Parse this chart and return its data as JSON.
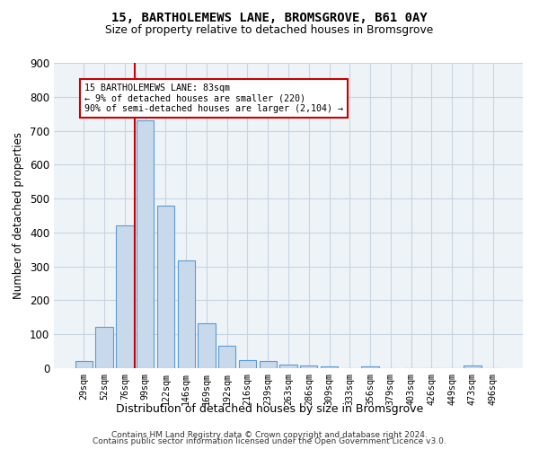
{
  "title": "15, BARTHOLEMEWS LANE, BROMSGROVE, B61 0AY",
  "subtitle": "Size of property relative to detached houses in Bromsgrove",
  "xlabel": "Distribution of detached houses by size in Bromsgrove",
  "ylabel": "Number of detached properties",
  "categories": [
    "29sqm",
    "52sqm",
    "76sqm",
    "99sqm",
    "122sqm",
    "146sqm",
    "169sqm",
    "192sqm",
    "216sqm",
    "239sqm",
    "263sqm",
    "286sqm",
    "309sqm",
    "333sqm",
    "356sqm",
    "379sqm",
    "403sqm",
    "426sqm",
    "449sqm",
    "473sqm",
    "496sqm"
  ],
  "values": [
    20,
    122,
    420,
    730,
    480,
    318,
    133,
    67,
    25,
    20,
    10,
    9,
    5,
    0,
    5,
    0,
    0,
    0,
    0,
    8,
    0
  ],
  "bar_color": "#c8d9eb",
  "bar_edge_color": "#5b9bd5",
  "vline_color": "#cc0000",
  "vline_xindex": 3,
  "annotation_title": "15 BARTHOLEMEWS LANE: 83sqm",
  "annotation_line1": "← 9% of detached houses are smaller (220)",
  "annotation_line2": "90% of semi-detached houses are larger (2,104) →",
  "annotation_box_color": "#ffffff",
  "annotation_box_edge": "#cc0000",
  "ylim": [
    0,
    900
  ],
  "yticks": [
    0,
    100,
    200,
    300,
    400,
    500,
    600,
    700,
    800,
    900
  ],
  "grid_color": "#c8d4e0",
  "bg_color": "#eef3f8",
  "footer1": "Contains HM Land Registry data © Crown copyright and database right 2024.",
  "footer2": "Contains public sector information licensed under the Open Government Licence v3.0."
}
